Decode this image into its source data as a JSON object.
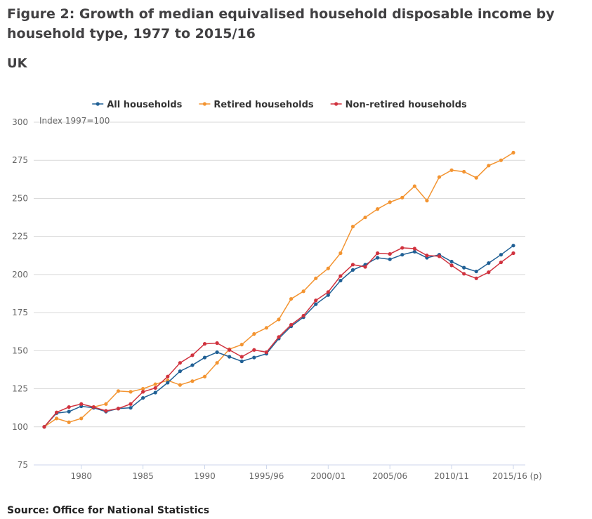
{
  "title": "Figure 2: Growth of median equivalised household disposable income by household type, 1977 to 2015/16",
  "geography": "UK",
  "source": "Source: Office for National Statistics",
  "chart_data": {
    "type": "line",
    "ylabel": "Index 1997=100",
    "ylim": [
      75,
      300
    ],
    "yticks": [
      75,
      100,
      125,
      150,
      175,
      200,
      225,
      250,
      275,
      300
    ],
    "grid": true,
    "legend_position": "top-center",
    "x": [
      "1977",
      "1978",
      "1979",
      "1980",
      "1981",
      "1982",
      "1983",
      "1984",
      "1985",
      "1986",
      "1987",
      "1988",
      "1989",
      "1990",
      "1991",
      "1992",
      "1993",
      "1994",
      "1995/96",
      "1996/97",
      "1997/98",
      "1998/99",
      "1999/00",
      "2000/01",
      "2001/02",
      "2002/03",
      "2003/04",
      "2004/05",
      "2005/06",
      "2006/07",
      "2007/08",
      "2008/09",
      "2009/10",
      "2010/11",
      "2011/12",
      "2012/13",
      "2013/14",
      "2014/15",
      "2015/16"
    ],
    "xticks": [
      {
        "index": 3,
        "label": "1980"
      },
      {
        "index": 8,
        "label": "1985"
      },
      {
        "index": 13,
        "label": "1990"
      },
      {
        "index": 18,
        "label": "1995/96"
      },
      {
        "index": 23,
        "label": "2000/01"
      },
      {
        "index": 28,
        "label": "2005/06"
      },
      {
        "index": 33,
        "label": "2010/11"
      },
      {
        "index": 38,
        "label": "2015/16 (p)"
      }
    ],
    "series": [
      {
        "name": "All households",
        "color": "#206095",
        "values": [
          100,
          109,
          110,
          113.5,
          112.5,
          110,
          112,
          112.5,
          119,
          122.5,
          129,
          136.5,
          140.5,
          145.5,
          149,
          146,
          143,
          145.5,
          148,
          158,
          166,
          172,
          180.5,
          186.5,
          196,
          203,
          206.5,
          211,
          210,
          213,
          215,
          211,
          213,
          208.5,
          204.5,
          202,
          207.5,
          213,
          219
        ]
      },
      {
        "name": "Retired households",
        "color": "#f39431",
        "values": [
          100,
          105.5,
          103,
          105.5,
          113,
          115,
          123.5,
          123,
          125,
          128,
          130.5,
          127.5,
          130,
          133,
          142,
          151,
          154,
          161,
          165,
          170.5,
          184,
          189,
          197.5,
          204,
          214,
          231.5,
          237.5,
          243,
          247.5,
          250.5,
          258,
          248.5,
          264,
          268.5,
          267.5,
          263.5,
          271.5,
          275,
          280
        ]
      },
      {
        "name": "Non-retired households",
        "color": "#d0323e",
        "values": [
          100,
          109.5,
          113,
          115,
          113,
          110.5,
          112,
          115,
          123,
          125.5,
          133,
          142,
          147,
          154.5,
          155,
          150.5,
          146,
          150.5,
          149,
          159,
          167,
          173,
          183,
          188.5,
          199,
          206.5,
          205,
          214,
          213.5,
          217.5,
          217,
          212.5,
          212,
          206,
          200.5,
          197.5,
          201.5,
          208,
          214
        ]
      }
    ]
  }
}
